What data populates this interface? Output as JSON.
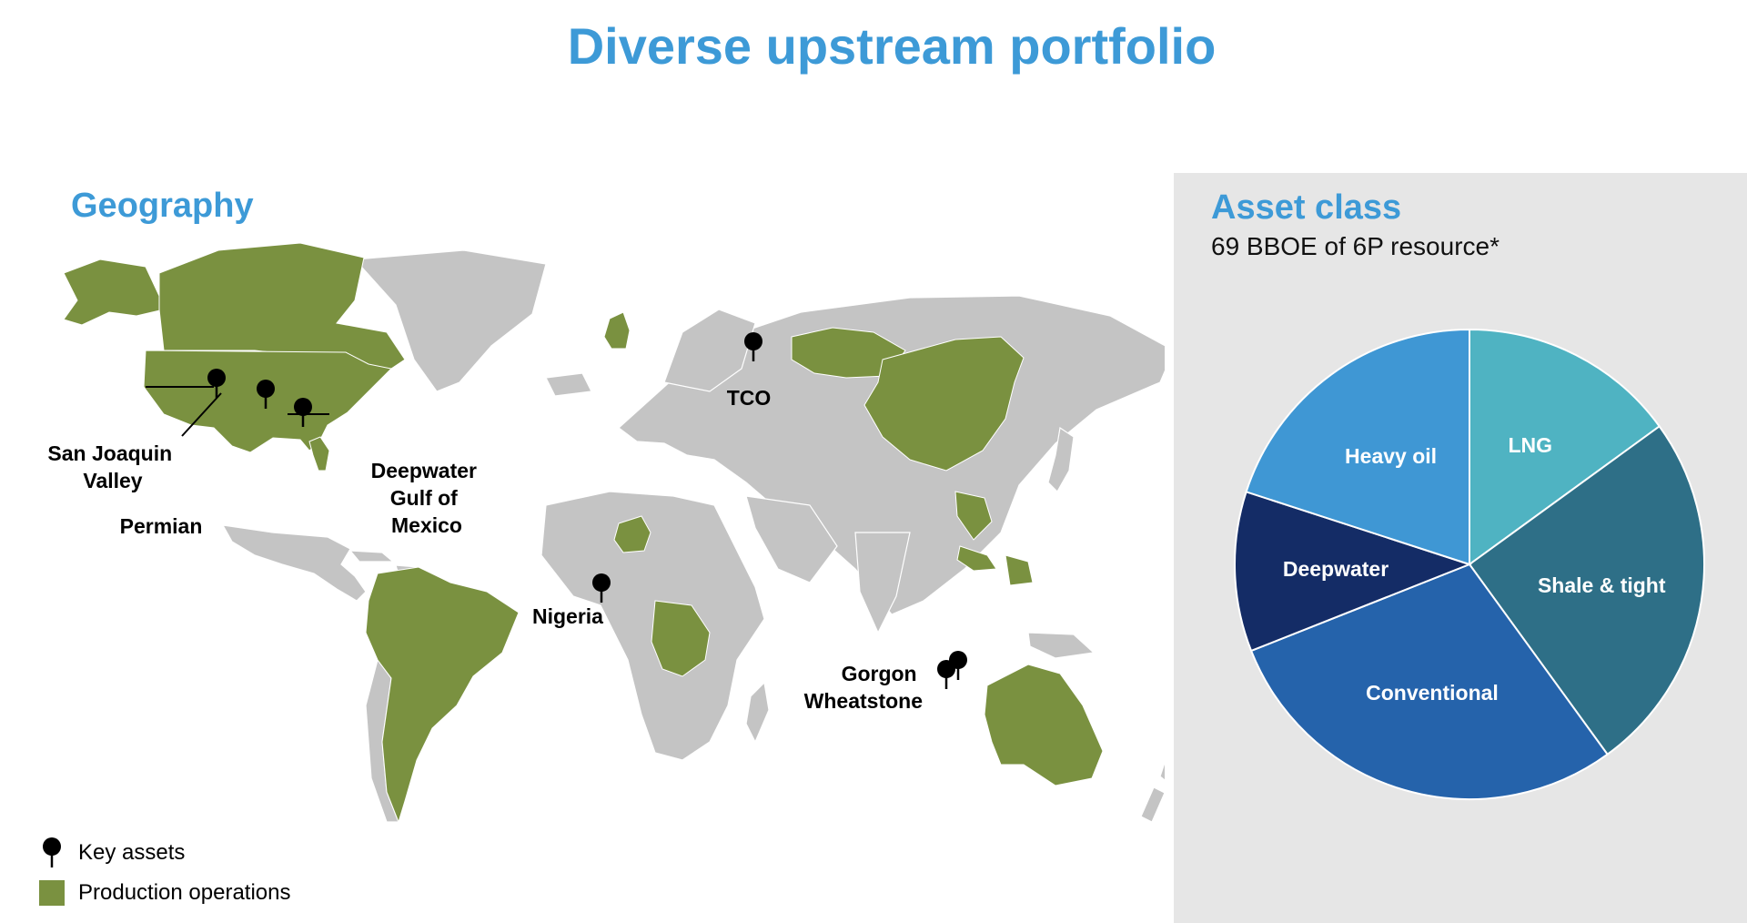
{
  "title": "Diverse upstream portfolio",
  "colors": {
    "title": "#3d9ad7",
    "production": "#7a9140",
    "land": "#c4c4c4",
    "panel": "#e6e6e6",
    "pin": "#000000"
  },
  "geography": {
    "title": "Geography",
    "key_assets": [
      {
        "id": "san-joaquin",
        "label": "San Joaquin Valley"
      },
      {
        "id": "permian",
        "label": "Permian"
      },
      {
        "id": "deepwater-gom",
        "label": "Deepwater Gulf of Mexico"
      },
      {
        "id": "tco",
        "label": "TCO"
      },
      {
        "id": "nigeria",
        "label": "Nigeria"
      },
      {
        "id": "gorgon-wheatstone",
        "label": "Gorgon Wheatstone"
      }
    ],
    "legend": {
      "key_assets": "Key assets",
      "production": "Production operations"
    }
  },
  "asset_class": {
    "title": "Asset class",
    "subtitle": "69 BBOE of 6P resource*"
  },
  "chart_data": {
    "type": "pie",
    "title": "Asset class",
    "subtitle": "69 BBOE of 6P resource*",
    "start_angle_deg": 0,
    "direction": "clockwise",
    "slices": [
      {
        "label": "LNG",
        "value": 15,
        "color": "#4fb3c2"
      },
      {
        "label": "Shale & tight",
        "value": 25,
        "color": "#2e6f87"
      },
      {
        "label": "Conventional",
        "value": 29,
        "color": "#2563ab"
      },
      {
        "label": "Deepwater",
        "value": 11,
        "color": "#142c66"
      },
      {
        "label": "Heavy oil",
        "value": 20,
        "color": "#3f97d4"
      }
    ]
  }
}
